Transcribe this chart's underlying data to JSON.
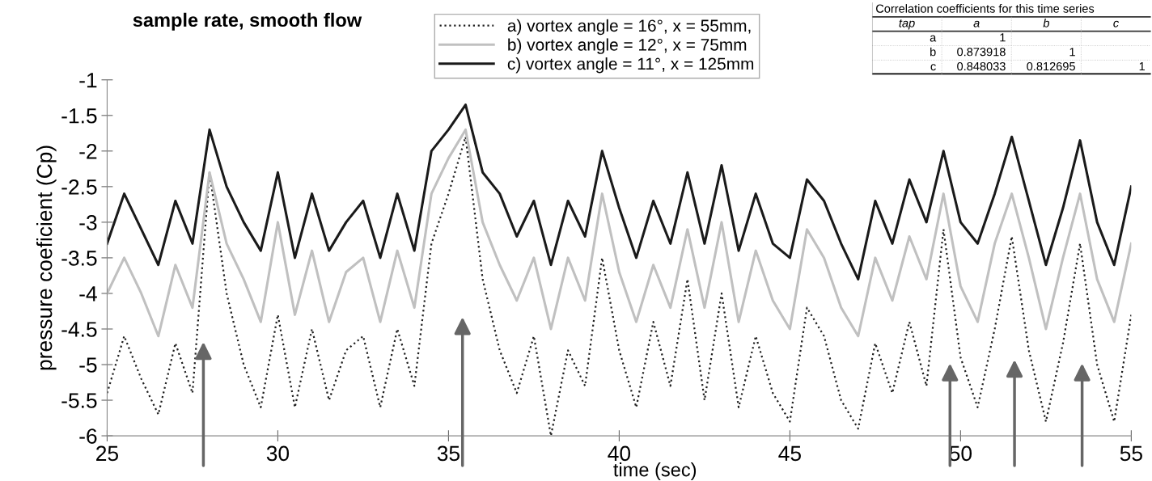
{
  "chart_data": {
    "type": "line",
    "title": "sample rate, smooth flow",
    "xlabel": "time (sec)",
    "ylabel": "pressure coeficient (Cp)",
    "x": [
      25,
      25.5,
      26,
      26.5,
      27,
      27.5,
      28,
      28.5,
      29,
      29.5,
      30,
      30.5,
      31,
      31.5,
      32,
      32.5,
      33,
      33.5,
      34,
      34.5,
      35,
      35.5,
      36,
      36.5,
      37,
      37.5,
      38,
      38.5,
      39,
      39.5,
      40,
      40.5,
      41,
      41.5,
      42,
      42.5,
      43,
      43.5,
      44,
      44.5,
      45,
      45.5,
      46,
      46.5,
      47,
      47.5,
      48,
      48.5,
      49,
      49.5,
      50,
      50.5,
      51,
      51.5,
      52,
      52.5,
      53,
      53.5,
      54,
      54.5,
      55
    ],
    "series": [
      {
        "name": "a) vortex angle = 16°, x = 55mm,",
        "color": "#202020",
        "line_style": "dotted",
        "values": [
          -5.4,
          -4.6,
          -5.2,
          -5.7,
          -4.7,
          -5.4,
          -2.3,
          -4.0,
          -5.0,
          -5.6,
          -4.3,
          -5.6,
          -4.5,
          -5.5,
          -4.8,
          -4.6,
          -5.6,
          -4.5,
          -5.3,
          -3.3,
          -2.6,
          -1.8,
          -3.8,
          -4.8,
          -5.4,
          -4.6,
          -6.0,
          -4.8,
          -5.3,
          -3.5,
          -4.8,
          -5.6,
          -4.4,
          -5.3,
          -3.8,
          -5.5,
          -4.0,
          -5.6,
          -4.6,
          -5.4,
          -5.8,
          -4.2,
          -4.6,
          -5.5,
          -5.9,
          -4.7,
          -5.4,
          -4.4,
          -5.3,
          -3.1,
          -4.9,
          -5.6,
          -4.5,
          -3.2,
          -4.8,
          -5.8,
          -4.7,
          -3.3,
          -5.0,
          -5.8,
          -4.3
        ]
      },
      {
        "name": "b) vortex angle = 12°, x = 75mm",
        "color": "#c0c0c0",
        "line_style": "solid",
        "values": [
          -4.0,
          -3.5,
          -4.0,
          -4.6,
          -3.6,
          -4.2,
          -2.3,
          -3.3,
          -3.8,
          -4.4,
          -3.0,
          -4.3,
          -3.4,
          -4.4,
          -3.7,
          -3.5,
          -4.4,
          -3.4,
          -4.2,
          -2.6,
          -2.1,
          -1.7,
          -3.0,
          -3.6,
          -4.1,
          -3.5,
          -4.5,
          -3.5,
          -4.1,
          -2.6,
          -3.7,
          -4.4,
          -3.6,
          -4.2,
          -3.1,
          -4.2,
          -3.0,
          -4.4,
          -3.4,
          -4.1,
          -4.5,
          -3.1,
          -3.5,
          -4.2,
          -4.6,
          -3.5,
          -4.1,
          -3.2,
          -3.8,
          -2.6,
          -3.9,
          -4.4,
          -3.3,
          -2.6,
          -3.5,
          -4.5,
          -3.5,
          -2.6,
          -3.8,
          -4.4,
          -3.3
        ]
      },
      {
        "name": "c) vortex angle = 11°, x = 125mm",
        "color": "#1a1a1a",
        "line_style": "solid",
        "values": [
          -3.3,
          -2.6,
          -3.1,
          -3.6,
          -2.7,
          -3.3,
          -1.7,
          -2.5,
          -3.0,
          -3.4,
          -2.3,
          -3.5,
          -2.6,
          -3.4,
          -3.0,
          -2.7,
          -3.5,
          -2.6,
          -3.4,
          -2.0,
          -1.7,
          -1.35,
          -2.3,
          -2.6,
          -3.2,
          -2.7,
          -3.6,
          -2.7,
          -3.2,
          -2.0,
          -2.8,
          -3.5,
          -2.7,
          -3.3,
          -2.3,
          -3.3,
          -2.2,
          -3.4,
          -2.6,
          -3.3,
          -3.5,
          -2.4,
          -2.7,
          -3.3,
          -3.8,
          -2.7,
          -3.3,
          -2.4,
          -3.0,
          -2.0,
          -3.0,
          -3.3,
          -2.6,
          -1.8,
          -2.7,
          -3.6,
          -2.8,
          -1.85,
          -3.0,
          -3.6,
          -2.5
        ]
      }
    ],
    "xlim": [
      25,
      55
    ],
    "xticks": [
      25,
      30,
      35,
      40,
      45,
      50,
      55
    ],
    "ylim": [
      -6,
      -1
    ],
    "yticks": [
      -6,
      -5.5,
      -5,
      -4.5,
      -4,
      -3.5,
      -3,
      -2.5,
      -2,
      -1.5,
      -1
    ],
    "grid": false,
    "legend": "top",
    "marker": "none",
    "annotations": [
      "Correlation coefficients for this time series",
      "tap",
      "a",
      "b",
      "c",
      "a",
      "1",
      "b",
      "0.873918",
      "1",
      "c",
      "0.848033",
      "0.812695",
      "1"
    ]
  }
}
